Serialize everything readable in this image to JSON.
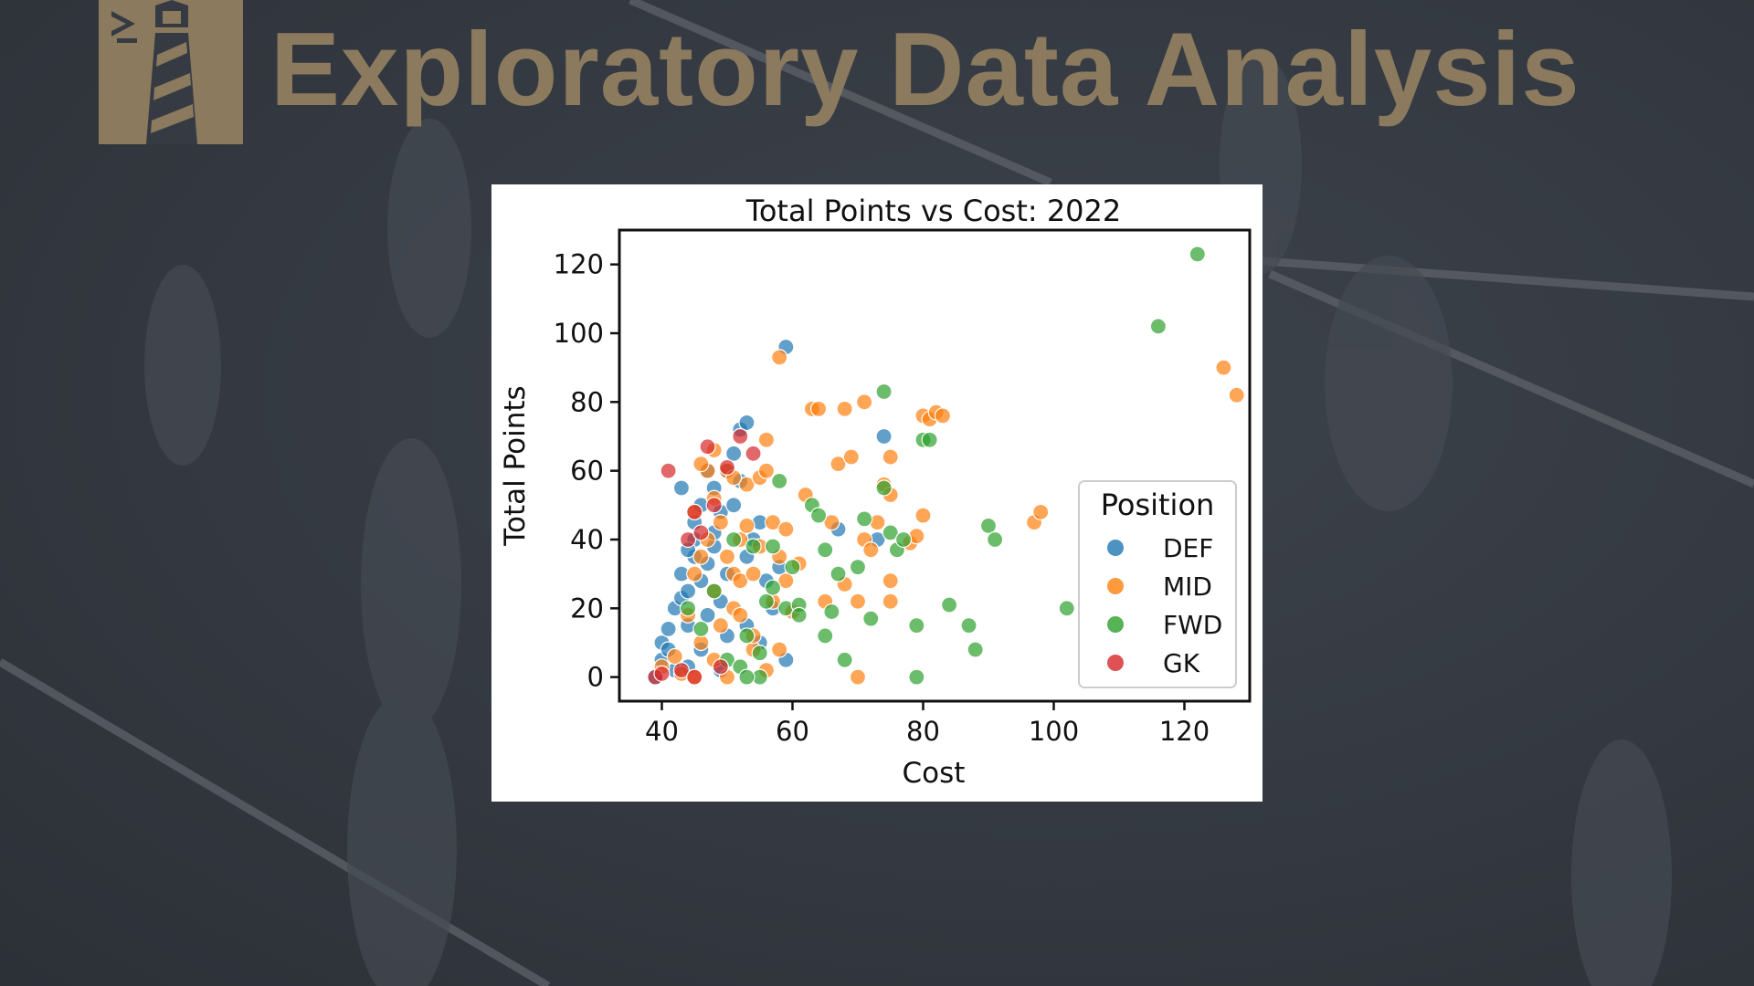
{
  "page": {
    "title": "Exploratory Data Analysis",
    "colors": {
      "background": "#363b43",
      "title": "#8b7a5e",
      "logo": "#8b7a5e"
    },
    "logo_icon": "lighthouse-icon"
  },
  "chart_data": {
    "type": "scatter",
    "title": "Total Points vs Cost: 2022",
    "xlabel": "Cost",
    "ylabel": "Total Points",
    "xlim": [
      33.5,
      130
    ],
    "ylim": [
      -7,
      130
    ],
    "xticks": [
      40,
      60,
      80,
      100,
      120
    ],
    "yticks": [
      0,
      20,
      40,
      60,
      80,
      100,
      120
    ],
    "grid": false,
    "legend": {
      "title": "Position",
      "placement": "center-right"
    },
    "series": [
      {
        "name": "DEF",
        "color": "#1f77b4",
        "points": [
          [
            39,
            0
          ],
          [
            40,
            5
          ],
          [
            40,
            10
          ],
          [
            41,
            8
          ],
          [
            42,
            2
          ],
          [
            42,
            20
          ],
          [
            43,
            23
          ],
          [
            43,
            30
          ],
          [
            44,
            15
          ],
          [
            44,
            25
          ],
          [
            45,
            35
          ],
          [
            45,
            40
          ],
          [
            45,
            45
          ],
          [
            46,
            28
          ],
          [
            46,
            50
          ],
          [
            47,
            33
          ],
          [
            47,
            18
          ],
          [
            48,
            38
          ],
          [
            48,
            42
          ],
          [
            48,
            55
          ],
          [
            49,
            22
          ],
          [
            49,
            48
          ],
          [
            50,
            30
          ],
          [
            50,
            12
          ],
          [
            51,
            65
          ],
          [
            52,
            57
          ],
          [
            52,
            72
          ],
          [
            53,
            74
          ],
          [
            53,
            35
          ],
          [
            54,
            40
          ],
          [
            55,
            45
          ],
          [
            56,
            28
          ],
          [
            57,
            20
          ],
          [
            58,
            32
          ],
          [
            59,
            96
          ],
          [
            59,
            5
          ],
          [
            67,
            43
          ],
          [
            73,
            40
          ],
          [
            74,
            70
          ],
          [
            43,
            55
          ],
          [
            47,
            60
          ],
          [
            50,
            60
          ],
          [
            51,
            50
          ],
          [
            55,
            10
          ],
          [
            44,
            3
          ],
          [
            46,
            8
          ],
          [
            49,
            2
          ],
          [
            53,
            15
          ],
          [
            41,
            14
          ],
          [
            44,
            37
          ]
        ]
      },
      {
        "name": "MID",
        "color": "#ff7f0e",
        "points": [
          [
            40,
            3
          ],
          [
            42,
            6
          ],
          [
            43,
            1
          ],
          [
            44,
            18
          ],
          [
            45,
            48
          ],
          [
            45,
            0
          ],
          [
            46,
            35
          ],
          [
            46,
            10
          ],
          [
            47,
            40
          ],
          [
            47,
            60
          ],
          [
            48,
            25
          ],
          [
            48,
            52
          ],
          [
            49,
            45
          ],
          [
            49,
            15
          ],
          [
            50,
            60
          ],
          [
            50,
            35
          ],
          [
            51,
            30
          ],
          [
            51,
            20
          ],
          [
            52,
            40
          ],
          [
            52,
            28
          ],
          [
            53,
            44
          ],
          [
            53,
            56
          ],
          [
            54,
            30
          ],
          [
            54,
            8
          ],
          [
            55,
            38
          ],
          [
            55,
            58
          ],
          [
            56,
            60
          ],
          [
            56,
            69
          ],
          [
            57,
            45
          ],
          [
            57,
            22
          ],
          [
            58,
            93
          ],
          [
            58,
            35
          ],
          [
            59,
            28
          ],
          [
            59,
            43
          ],
          [
            60,
            19
          ],
          [
            61,
            33
          ],
          [
            62,
            53
          ],
          [
            63,
            78
          ],
          [
            64,
            78
          ],
          [
            65,
            22
          ],
          [
            66,
            45
          ],
          [
            67,
            62
          ],
          [
            68,
            78
          ],
          [
            68,
            27
          ],
          [
            69,
            64
          ],
          [
            70,
            22
          ],
          [
            70,
            0
          ],
          [
            71,
            80
          ],
          [
            71,
            40
          ],
          [
            72,
            37
          ],
          [
            73,
            45
          ],
          [
            74,
            56
          ],
          [
            75,
            53
          ],
          [
            75,
            64
          ],
          [
            75,
            28
          ],
          [
            75,
            22
          ],
          [
            78,
            39
          ],
          [
            79,
            41
          ],
          [
            80,
            76
          ],
          [
            80,
            47
          ],
          [
            81,
            75
          ],
          [
            82,
            77
          ],
          [
            83,
            76
          ],
          [
            97,
            45
          ],
          [
            98,
            48
          ],
          [
            116,
            53
          ],
          [
            126,
            90
          ],
          [
            128,
            82
          ],
          [
            45,
            30
          ],
          [
            48,
            5
          ],
          [
            50,
            0
          ],
          [
            52,
            18
          ],
          [
            54,
            12
          ],
          [
            56,
            2
          ],
          [
            58,
            8
          ],
          [
            46,
            62
          ],
          [
            48,
            66
          ],
          [
            51,
            58
          ]
        ]
      },
      {
        "name": "FWD",
        "color": "#2ca02c",
        "points": [
          [
            44,
            20
          ],
          [
            46,
            14
          ],
          [
            48,
            25
          ],
          [
            50,
            5
          ],
          [
            51,
            40
          ],
          [
            52,
            3
          ],
          [
            53,
            12
          ],
          [
            54,
            38
          ],
          [
            55,
            0
          ],
          [
            56,
            22
          ],
          [
            57,
            38
          ],
          [
            58,
            57
          ],
          [
            59,
            20
          ],
          [
            60,
            32
          ],
          [
            61,
            21
          ],
          [
            61,
            18
          ],
          [
            63,
            50
          ],
          [
            64,
            47
          ],
          [
            65,
            37
          ],
          [
            65,
            12
          ],
          [
            66,
            19
          ],
          [
            67,
            30
          ],
          [
            68,
            5
          ],
          [
            70,
            32
          ],
          [
            71,
            46
          ],
          [
            72,
            17
          ],
          [
            74,
            83
          ],
          [
            74,
            55
          ],
          [
            75,
            42
          ],
          [
            76,
            37
          ],
          [
            77,
            40
          ],
          [
            79,
            0
          ],
          [
            79,
            15
          ],
          [
            80,
            69
          ],
          [
            81,
            69
          ],
          [
            84,
            21
          ],
          [
            87,
            15
          ],
          [
            88,
            8
          ],
          [
            90,
            44
          ],
          [
            91,
            40
          ],
          [
            102,
            20
          ],
          [
            116,
            102
          ],
          [
            122,
            123
          ],
          [
            55,
            7
          ],
          [
            53,
            0
          ],
          [
            57,
            26
          ]
        ]
      },
      {
        "name": "GK",
        "color": "#d62728",
        "points": [
          [
            39,
            0
          ],
          [
            40,
            1
          ],
          [
            41,
            60
          ],
          [
            44,
            40
          ],
          [
            45,
            48
          ],
          [
            46,
            42
          ],
          [
            47,
            67
          ],
          [
            48,
            50
          ],
          [
            50,
            61
          ],
          [
            52,
            70
          ],
          [
            54,
            65
          ],
          [
            43,
            2
          ],
          [
            45,
            0
          ],
          [
            49,
            3
          ]
        ]
      }
    ]
  }
}
